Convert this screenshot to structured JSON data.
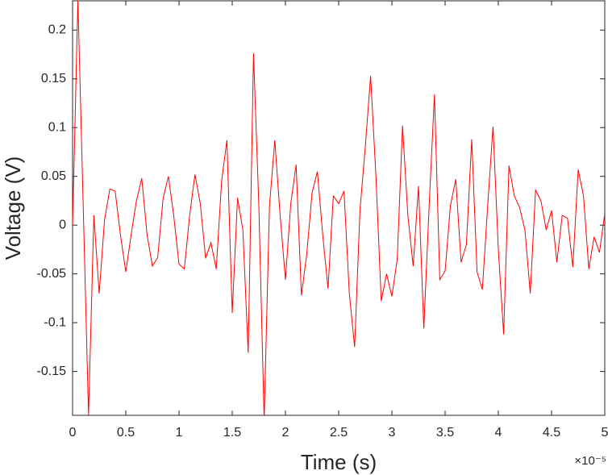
{
  "chart_data": {
    "type": "line",
    "xlabel": "Time (s)",
    "ylabel": "Voltage (V)",
    "x_multiplier": "×10⁻⁵",
    "x": [
      0,
      5e-07,
      1e-06,
      1.5e-06,
      2e-06,
      2.5e-06,
      3e-06,
      3.5e-06,
      4e-06,
      4.5e-06,
      5e-06,
      5.5e-06,
      6e-06,
      6.5e-06,
      7e-06,
      7.5e-06,
      8e-06,
      8.5e-06,
      9e-06,
      9.5e-06,
      1e-05,
      1.05e-05,
      1.1e-05,
      1.15e-05,
      1.2e-05,
      1.25e-05,
      1.3e-05,
      1.35e-05,
      1.4e-05,
      1.45e-05,
      1.5e-05,
      1.55e-05,
      1.6e-05,
      1.65e-05,
      1.7e-05,
      1.75e-05,
      1.8e-05,
      1.85e-05,
      1.9e-05,
      1.95e-05,
      2e-05,
      2.05e-05,
      2.1e-05,
      2.15e-05,
      2.2e-05,
      2.25e-05,
      2.3e-05,
      2.35e-05,
      2.4e-05,
      2.45e-05,
      2.5e-05,
      2.55e-05,
      2.6e-05,
      2.65e-05,
      2.7e-05,
      2.75e-05,
      2.8e-05,
      2.85e-05,
      2.9e-05,
      2.95e-05,
      3e-05,
      3.05e-05,
      3.1e-05,
      3.15e-05,
      3.2e-05,
      3.25e-05,
      3.3e-05,
      3.35e-05,
      3.4e-05,
      3.45e-05,
      3.5e-05,
      3.55e-05,
      3.6e-05,
      3.65e-05,
      3.7e-05,
      3.75e-05,
      3.8e-05,
      3.85e-05,
      3.9e-05,
      3.95e-05,
      4e-05,
      4.05e-05,
      4.1e-05,
      4.15e-05,
      4.2e-05,
      4.25e-05,
      4.3e-05,
      4.35e-05,
      4.4e-05,
      4.45e-05,
      4.5e-05,
      4.55e-05,
      4.6e-05,
      4.65e-05,
      4.7e-05,
      4.75e-05,
      4.8e-05,
      4.85e-05,
      4.9e-05,
      4.95e-05,
      5e-05
    ],
    "series": [
      {
        "color": "#ff0000",
        "values": [
          0,
          0.23,
          0.02,
          -0.195,
          0.01,
          -0.07,
          0.005,
          0.037,
          0.035,
          -0.01,
          -0.048,
          -0.01,
          0.025,
          0.048,
          -0.01,
          -0.042,
          -0.033,
          0.027,
          0.05,
          0.01,
          -0.04,
          -0.045,
          0.01,
          0.052,
          0.022,
          -0.034,
          -0.018,
          -0.045,
          0.045,
          0.087,
          -0.09,
          0.028,
          -0.005,
          -0.131,
          0.176,
          0.02,
          -0.2,
          0.02,
          0.087,
          0.01,
          -0.056,
          0.022,
          0.062,
          -0.072,
          -0.03,
          0.033,
          0.055,
          -0.01,
          -0.065,
          0.03,
          0.022,
          0.035,
          -0.07,
          -0.125,
          0.015,
          0.08,
          0.153,
          0.05,
          -0.078,
          -0.05,
          -0.073,
          -0.035,
          0.102,
          0.01,
          -0.042,
          0.04,
          -0.106,
          0.02,
          0.134,
          -0.056,
          -0.047,
          0.02,
          0.047,
          -0.038,
          -0.02,
          0.088,
          -0.048,
          -0.066,
          0.02,
          0.101,
          -0.025,
          -0.112,
          0.061,
          0.03,
          0.018,
          -0.005,
          -0.07,
          0.036,
          0.025,
          -0.005,
          0.015,
          -0.038,
          0.01,
          0.007,
          -0.043,
          0.057,
          0.03,
          -0.045,
          -0.012,
          -0.028,
          0.012
        ]
      }
    ],
    "xlim": [
      0,
      5e-05
    ],
    "xticks": [
      0,
      {
        "value": 5e-06,
        "label": "0.5"
      },
      {
        "value": 1e-05,
        "label": "1"
      },
      {
        "value": 1.5e-05,
        "label": "1.5"
      },
      {
        "value": 2e-05,
        "label": "2"
      },
      {
        "value": 2.5e-05,
        "label": "2.5"
      },
      {
        "value": 3e-05,
        "label": "3"
      },
      {
        "value": 3.5e-05,
        "label": "3.5"
      },
      {
        "value": 4e-05,
        "label": "4"
      },
      {
        "value": 4.5e-05,
        "label": "4.5"
      },
      {
        "value": 5e-05,
        "label": "5"
      }
    ],
    "ylim": [
      -0.195,
      0.23
    ],
    "yticks": [
      -0.15,
      -0.1,
      -0.05,
      0,
      0.05,
      0.1,
      0.15,
      0.2
    ],
    "grid": false
  }
}
